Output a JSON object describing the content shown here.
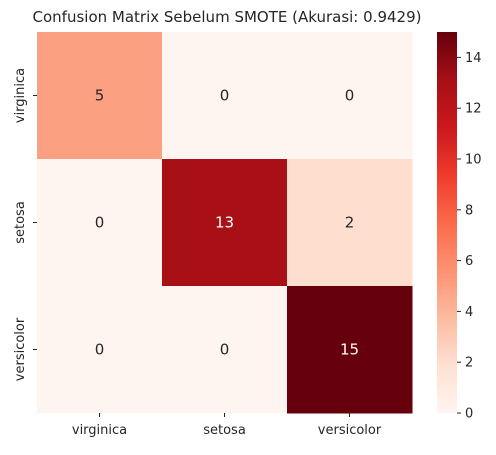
{
  "chart_data": {
    "type": "heatmap",
    "title": "Confusion Matrix Sebelum SMOTE (Akurasi: 0.9429)",
    "x_categories": [
      "virginica",
      "setosa",
      "versicolor"
    ],
    "y_categories": [
      "virginica",
      "setosa",
      "versicolor"
    ],
    "matrix": [
      [
        5,
        0,
        0
      ],
      [
        0,
        13,
        2
      ],
      [
        0,
        0,
        15
      ]
    ],
    "cell_labels": [
      [
        "5",
        "0",
        "0"
      ],
      [
        "0",
        "13",
        "2"
      ],
      [
        "0",
        "0",
        "15"
      ]
    ],
    "xlabel": "",
    "ylabel": "",
    "colorbar": {
      "min": 0,
      "max": 15,
      "ticks": [
        0,
        2,
        4,
        6,
        8,
        10,
        12,
        14
      ],
      "tick_labels": [
        "0",
        "2",
        "4",
        "6",
        "8",
        "10",
        "12",
        "14"
      ],
      "colormap": "Reds",
      "low_color": "#fff5f0",
      "high_color": "#67000d"
    },
    "grid": false,
    "legend": "colorbar-right"
  }
}
